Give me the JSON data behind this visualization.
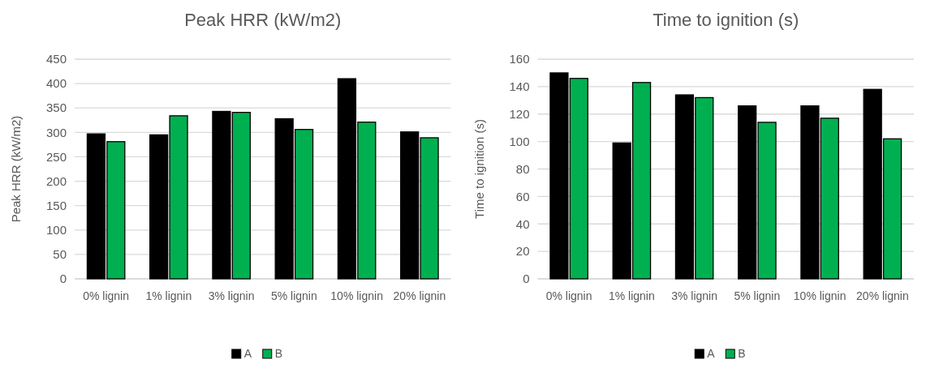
{
  "chart_data": [
    {
      "type": "bar",
      "title": "Peak HRR (kW/m2)",
      "ylabel": "Peak HRR (kW/m2)",
      "categories": [
        "0% lignin",
        "1% lignin",
        "3% lignin",
        "5% lignin",
        "10% lignin",
        "20% lignin"
      ],
      "series": [
        {
          "name": "A",
          "color": "#000000",
          "values": [
            297,
            295,
            343,
            328,
            410,
            301
          ]
        },
        {
          "name": "B",
          "color": "#00b050",
          "values": [
            281,
            334,
            341,
            306,
            321,
            289
          ]
        }
      ],
      "ylim": [
        0,
        450
      ],
      "yticks": [
        0,
        50,
        100,
        150,
        200,
        250,
        300,
        350,
        400,
        450
      ],
      "grid": "y",
      "legend": "bottom"
    },
    {
      "type": "bar",
      "title": "Time to ignition (s)",
      "ylabel": "Time to ignition (s)",
      "categories": [
        "0% lignin",
        "1% lignin",
        "3% lignin",
        "5% lignin",
        "10% lignin",
        "20% lignin"
      ],
      "series": [
        {
          "name": "A",
          "color": "#000000",
          "values": [
            150,
            99,
            134,
            126,
            126,
            138
          ]
        },
        {
          "name": "B",
          "color": "#00b050",
          "values": [
            146,
            143,
            132,
            114,
            117,
            102
          ]
        }
      ],
      "ylim": [
        0,
        160
      ],
      "yticks": [
        0,
        20,
        40,
        60,
        80,
        100,
        120,
        140,
        160
      ],
      "grid": "y",
      "legend": "bottom"
    }
  ]
}
